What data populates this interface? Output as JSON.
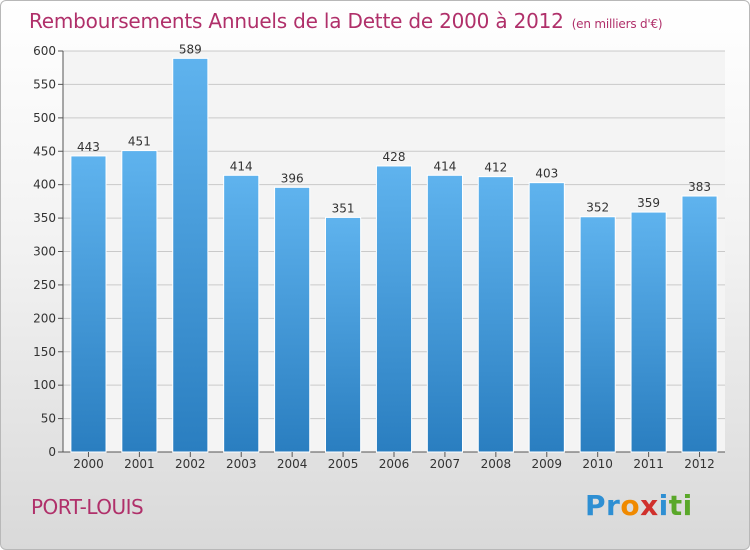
{
  "title": "Remboursements Annuels de la Dette de 2000 à 2012",
  "unit": "(en milliers d'€)",
  "location": "PORT-LOUIS",
  "logo": {
    "text": "Proxiti",
    "letters": [
      {
        "ch": "P",
        "color": "#2e8fd3"
      },
      {
        "ch": "r",
        "color": "#2e8fd3"
      },
      {
        "ch": "o",
        "color": "#f08a00"
      },
      {
        "ch": "x",
        "color": "#d0302c"
      },
      {
        "ch": "i",
        "color": "#2e8fd3"
      },
      {
        "ch": "t",
        "color": "#5aa82a"
      },
      {
        "ch": "i",
        "color": "#5aa82a"
      }
    ]
  },
  "colors": {
    "bar_top": "#5fb3ee",
    "bar_bottom": "#2a7ec0",
    "title": "#b0306a",
    "grid": "#c9c9c9"
  },
  "chart_data": {
    "type": "bar",
    "categories": [
      "2000",
      "2001",
      "2002",
      "2003",
      "2004",
      "2005",
      "2006",
      "2007",
      "2008",
      "2009",
      "2010",
      "2011",
      "2012"
    ],
    "values": [
      443,
      451,
      589,
      414,
      396,
      351,
      428,
      414,
      412,
      403,
      352,
      359,
      383
    ],
    "ylim": [
      0,
      600
    ],
    "yticks": [
      0,
      50,
      100,
      150,
      200,
      250,
      300,
      350,
      400,
      450,
      500,
      550,
      600
    ],
    "grid": true,
    "data_labels": true
  }
}
